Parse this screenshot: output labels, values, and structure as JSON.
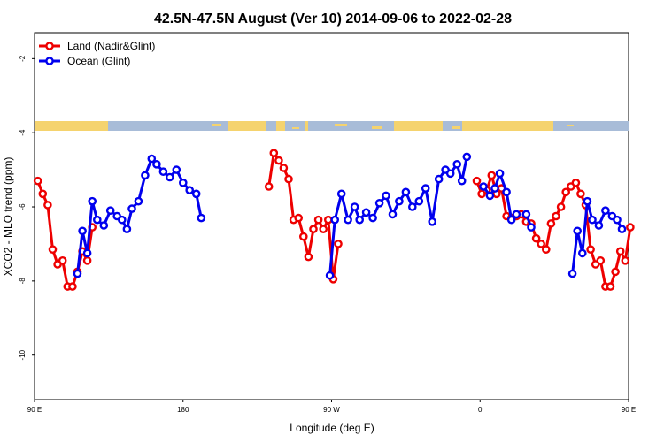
{
  "chart_data": {
    "type": "line",
    "title": "42.5N-47.5N August (Ver 10)   2014-09-06 to 2022-02-28",
    "xlabel": "Longitude (deg E)",
    "ylabel": "XCO2 - MLO trend (ppm)",
    "xlim": [
      90,
      450
    ],
    "ylim": [
      -11.2,
      -1.3
    ],
    "x_ticks": [
      {
        "value": 90,
        "label": "90 E"
      },
      {
        "value": 180,
        "label": "180"
      },
      {
        "value": 270,
        "label": "90 W"
      },
      {
        "value": 360,
        "label": "0"
      },
      {
        "value": 450,
        "label": "90 E"
      },
      {
        "value": 540,
        "label": "180"
      }
    ],
    "y_ticks": [
      {
        "value": -2,
        "label": "-2"
      },
      {
        "value": -4,
        "label": "-4"
      },
      {
        "value": -6,
        "label": "-6"
      },
      {
        "value": -8,
        "label": "-8"
      },
      {
        "value": -10,
        "label": "-10"
      }
    ],
    "legend_position": "top-left",
    "colors": {
      "land": "#ee0000",
      "ocean": "#0000ee",
      "land_mask": "#f5d36e",
      "ocean_mask": "#a8bcd8"
    },
    "series": [
      {
        "name": "Land (Nadir&Glint)",
        "color": "#ee0000",
        "segments": [
          [
            [
              92,
              -5.3
            ],
            [
              95,
              -5.65
            ],
            [
              98,
              -5.95
            ],
            [
              101,
              -7.15
            ],
            [
              104,
              -7.55
            ],
            [
              107,
              -7.45
            ],
            [
              110,
              -8.15
            ],
            [
              113,
              -8.15
            ],
            [
              116,
              -7.75
            ],
            [
              119,
              -7.2
            ],
            [
              122,
              -7.45
            ],
            [
              125,
              -6.55
            ]
          ],
          [
            [
              232,
              -5.45
            ],
            [
              235,
              -4.55
            ],
            [
              238,
              -4.75
            ],
            [
              241,
              -4.95
            ],
            [
              244,
              -5.25
            ],
            [
              247,
              -6.35
            ],
            [
              250,
              -6.3
            ],
            [
              253,
              -6.8
            ],
            [
              256,
              -7.35
            ],
            [
              259,
              -6.6
            ],
            [
              262,
              -6.35
            ],
            [
              265,
              -6.6
            ],
            [
              268,
              -6.35
            ],
            [
              271,
              -7.95
            ],
            [
              274,
              -7.0
            ]
          ],
          [
            [
              358,
              -5.3
            ],
            [
              361,
              -5.65
            ],
            [
              364,
              -5.55
            ],
            [
              367,
              -5.15
            ],
            [
              370,
              -5.65
            ],
            [
              373,
              -5.5
            ],
            [
              376,
              -6.25
            ],
            [
              379,
              -6.3
            ],
            [
              382,
              -6.25
            ],
            [
              385,
              -6.2
            ],
            [
              388,
              -6.4
            ],
            [
              391,
              -6.45
            ],
            [
              394,
              -6.85
            ],
            [
              397,
              -7.0
            ],
            [
              400,
              -7.15
            ],
            [
              403,
              -6.45
            ],
            [
              406,
              -6.25
            ],
            [
              409,
              -6.0
            ],
            [
              412,
              -5.6
            ],
            [
              415,
              -5.45
            ],
            [
              418,
              -5.35
            ],
            [
              421,
              -5.65
            ],
            [
              424,
              -5.95
            ],
            [
              427,
              -7.15
            ],
            [
              430,
              -7.55
            ],
            [
              433,
              -7.45
            ],
            [
              436,
              -8.15
            ],
            [
              439,
              -8.15
            ],
            [
              442,
              -7.75
            ],
            [
              445,
              -7.2
            ],
            [
              448,
              -7.45
            ],
            [
              451,
              -6.55
            ]
          ]
        ]
      },
      {
        "name": "Ocean (Glint)",
        "color": "#0000ee",
        "segments": [
          [
            [
              116,
              -7.8
            ],
            [
              119,
              -6.65
            ],
            [
              122,
              -7.25
            ],
            [
              125,
              -5.85
            ],
            [
              128,
              -6.35
            ],
            [
              132,
              -6.5
            ],
            [
              136,
              -6.1
            ],
            [
              140,
              -6.25
            ],
            [
              143,
              -6.35
            ],
            [
              146,
              -6.6
            ],
            [
              149,
              -6.05
            ],
            [
              153,
              -5.85
            ],
            [
              157,
              -5.15
            ],
            [
              161,
              -4.7
            ],
            [
              164,
              -4.85
            ],
            [
              168,
              -5.05
            ],
            [
              172,
              -5.2
            ],
            [
              176,
              -5.0
            ],
            [
              180,
              -5.35
            ],
            [
              184,
              -5.55
            ],
            [
              188,
              -5.65
            ],
            [
              191,
              -6.3
            ]
          ],
          [
            [
              269,
              -7.85
            ],
            [
              272,
              -6.35
            ],
            [
              276,
              -5.65
            ],
            [
              280,
              -6.35
            ],
            [
              284,
              -6.0
            ],
            [
              287,
              -6.35
            ],
            [
              291,
              -6.15
            ],
            [
              295,
              -6.3
            ],
            [
              299,
              -5.9
            ],
            [
              303,
              -5.7
            ],
            [
              307,
              -6.2
            ],
            [
              311,
              -5.85
            ],
            [
              315,
              -5.6
            ],
            [
              319,
              -6.0
            ],
            [
              323,
              -5.85
            ],
            [
              327,
              -5.5
            ],
            [
              331,
              -6.4
            ],
            [
              335,
              -5.25
            ],
            [
              339,
              -5.0
            ],
            [
              342,
              -5.1
            ],
            [
              346,
              -4.85
            ],
            [
              349,
              -5.3
            ],
            [
              352,
              -4.65
            ]
          ],
          [
            [
              362,
              -5.45
            ],
            [
              366,
              -5.7
            ],
            [
              369,
              -5.5
            ],
            [
              372,
              -5.1
            ],
            [
              376,
              -5.6
            ],
            [
              379,
              -6.35
            ]
          ],
          [
            [
              382,
              -6.2
            ]
          ],
          [
            [
              388,
              -6.2
            ],
            [
              391,
              -6.55
            ]
          ],
          [
            [
              416,
              -7.8
            ],
            [
              419,
              -6.65
            ],
            [
              422,
              -7.25
            ],
            [
              425,
              -5.85
            ],
            [
              428,
              -6.35
            ],
            [
              432,
              -6.5
            ],
            [
              436,
              -6.1
            ],
            [
              440,
              -6.25
            ],
            [
              443,
              -6.35
            ],
            [
              446,
              -6.6
            ]
          ]
        ]
      }
    ]
  }
}
